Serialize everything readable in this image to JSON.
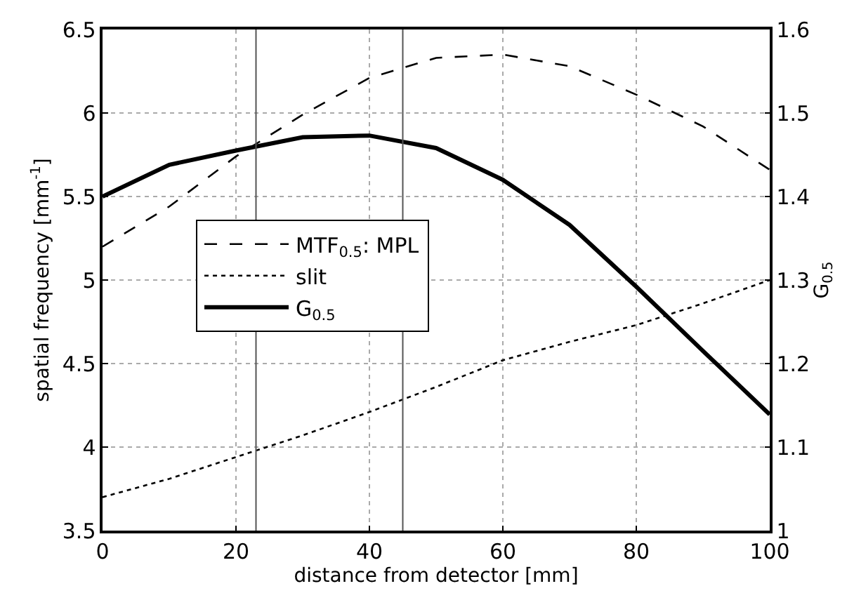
{
  "chart_data": {
    "type": "line",
    "xlabel": "distance from detector [mm]",
    "ylabel": "spatial frequency [mm$^{-1}$]",
    "y2label": "G$_{0.5}$",
    "x": [
      0,
      10,
      20,
      30,
      40,
      50,
      60,
      70,
      80,
      90,
      100
    ],
    "series": [
      {
        "name": "MTF$_{0.5}$: MPL",
        "color": "#000000",
        "line_style": "dashed",
        "values": [
          5.2,
          5.44,
          5.74,
          5.99,
          6.21,
          6.33,
          6.35,
          6.28,
          6.11,
          5.92,
          5.66
        ]
      },
      {
        "name": "slit",
        "color": "#000000",
        "line_style": "dotted",
        "values": [
          3.7,
          3.81,
          3.94,
          4.07,
          4.21,
          4.36,
          4.52,
          4.63,
          4.73,
          4.86,
          5.0
        ]
      },
      {
        "name": "G$_{0.5}$",
        "color": "#000000",
        "line_style": "solid",
        "axis": "y2",
        "values": [
          1.4,
          1.438,
          1.455,
          1.471,
          1.473,
          1.458,
          1.42,
          1.366,
          1.292,
          1.215,
          1.139
        ]
      }
    ],
    "xlim": [
      0,
      100
    ],
    "xticks": [
      0,
      20,
      40,
      60,
      80,
      100
    ],
    "ylim": [
      3.5,
      6.5
    ],
    "yticks": [
      3.5,
      4,
      4.5,
      5,
      5.5,
      6,
      6.5
    ],
    "y2lim": [
      1,
      1.6
    ],
    "y2ticks": [
      1,
      1.1,
      1.2,
      1.3,
      1.4,
      1.5,
      1.6
    ],
    "ref_lines": [
      {
        "axis": "x",
        "value": 23,
        "color": "#555555"
      },
      {
        "axis": "x",
        "value": 45,
        "color": "#555555"
      }
    ],
    "grid": true,
    "legend": "center left",
    "marker": "none"
  }
}
